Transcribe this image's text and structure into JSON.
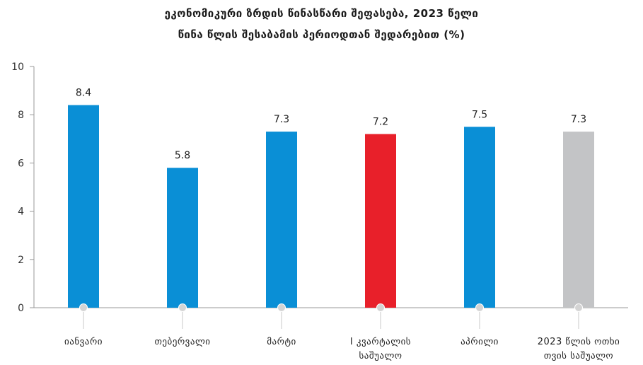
{
  "chart_data": {
    "type": "bar",
    "title_lines": [
      "ეკონომიკური ზრდის წინასწარი შეფასება,  2023 წელი",
      "წინა წლის შესაბამის პერიოდთან შედარებით (%)"
    ],
    "categories": [
      [
        "იანვარი"
      ],
      [
        "თებერვალი"
      ],
      [
        "მარტი"
      ],
      [
        "I კვარტალის",
        "საშუალო"
      ],
      [
        "აპრილი"
      ],
      [
        "2023 წლის ოთხი",
        "თვის საშუალო"
      ]
    ],
    "values": [
      8.4,
      5.8,
      7.3,
      7.2,
      7.5,
      7.3
    ],
    "value_labels": [
      "8.4",
      "5.8",
      "7.3",
      "7.2",
      "7.5",
      "7.3"
    ],
    "bar_colors": [
      "#0a8fd6",
      "#0a8fd6",
      "#0a8fd6",
      "#e8202a",
      "#0a8fd6",
      "#c3c4c6"
    ],
    "ylim": [
      0,
      10
    ],
    "yticks": [
      0,
      2,
      4,
      6,
      8,
      10
    ],
    "grid": false,
    "legend": "none"
  }
}
